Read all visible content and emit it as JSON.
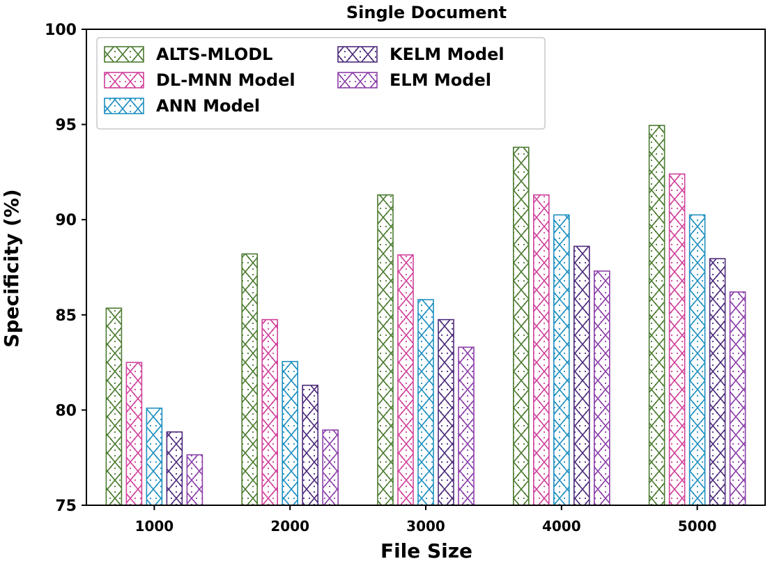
{
  "chart_data": {
    "type": "bar",
    "title": "Single Document",
    "xlabel": "File Size",
    "ylabel": "Specificity (%)",
    "ylim": [
      75,
      100
    ],
    "yticks": [
      "75",
      "80",
      "85",
      "90",
      "95",
      "100"
    ],
    "categories": [
      "1000",
      "2000",
      "3000",
      "4000",
      "5000"
    ],
    "series": [
      {
        "name": "ALTS-MLODL",
        "color": "#4a7a2e",
        "values": [
          85.35,
          88.2,
          91.3,
          93.8,
          94.95
        ]
      },
      {
        "name": "DL-MNN Model",
        "color": "#d0409a",
        "values": [
          82.5,
          84.75,
          88.15,
          91.3,
          92.4
        ]
      },
      {
        "name": "ANN Model",
        "color": "#1c8fc0",
        "values": [
          80.1,
          82.55,
          85.8,
          90.25,
          90.25
        ]
      },
      {
        "name": "KELM Model",
        "color": "#4b2a7a",
        "values": [
          78.85,
          81.3,
          84.75,
          88.6,
          87.95
        ]
      },
      {
        "name": "ELM Model",
        "color": "#8a3ea8",
        "values": [
          77.65,
          78.95,
          83.3,
          87.3,
          86.2
        ]
      }
    ],
    "legend": {
      "placement": "top-left",
      "columns": 2
    }
  }
}
